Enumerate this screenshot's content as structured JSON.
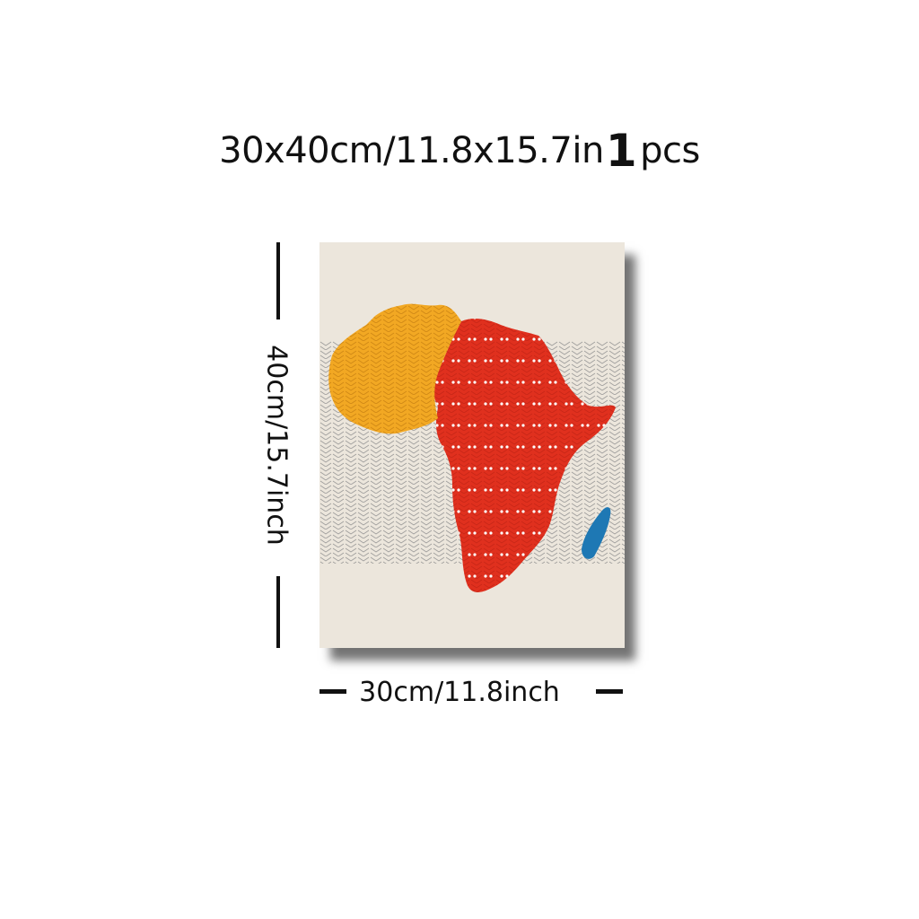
{
  "product": {
    "size_title": "30x40cm/11.8x15.7in",
    "quantity_number": "1",
    "quantity_unit": "pcs"
  },
  "dimensions": {
    "height_label": "40cm/15.7inch",
    "width_label": "30cm/11.8inch"
  },
  "artwork": {
    "subject": "africa-map-print",
    "colors": {
      "background": "#ece6dc",
      "north_region": "#f2a823",
      "continent": "#e0301e",
      "madagascar": "#1e78b4",
      "pattern_lines": "#8a8a8a",
      "dots": "#ffffff"
    }
  }
}
